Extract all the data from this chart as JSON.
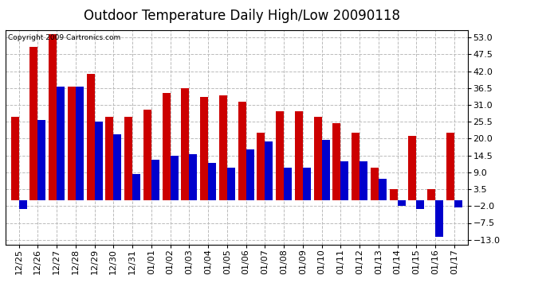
{
  "title": "Outdoor Temperature Daily High/Low 20090118",
  "copyright": "Copyright 2009 Cartronics.com",
  "dates": [
    "12/25",
    "12/26",
    "12/27",
    "12/28",
    "12/29",
    "12/30",
    "12/31",
    "01/01",
    "01/02",
    "01/03",
    "01/04",
    "01/05",
    "01/06",
    "01/07",
    "01/08",
    "01/09",
    "01/10",
    "01/11",
    "01/12",
    "01/13",
    "01/14",
    "01/15",
    "01/16",
    "01/17"
  ],
  "highs": [
    27.0,
    50.0,
    54.0,
    37.0,
    41.0,
    27.0,
    27.0,
    29.5,
    35.0,
    36.5,
    33.5,
    34.0,
    32.0,
    22.0,
    29.0,
    29.0,
    27.0,
    25.0,
    22.0,
    10.5,
    3.5,
    21.0,
    3.5,
    22.0
  ],
  "lows": [
    -3.0,
    26.0,
    37.0,
    37.0,
    25.5,
    21.5,
    8.5,
    13.0,
    14.5,
    15.0,
    12.0,
    10.5,
    16.5,
    19.0,
    10.5,
    10.5,
    19.5,
    12.5,
    12.5,
    7.0,
    -2.0,
    -3.0,
    -12.0,
    -2.5
  ],
  "high_color": "#cc0000",
  "low_color": "#0000cc",
  "bg_color": "#ffffff",
  "plot_bg_color": "#ffffff",
  "grid_color": "#bbbbbb",
  "ymin": -14.5,
  "ymax": 55.5,
  "yticks": [
    -13.0,
    -7.5,
    -2.0,
    3.5,
    9.0,
    14.5,
    20.0,
    25.5,
    31.0,
    36.5,
    42.0,
    47.5,
    53.0
  ],
  "title_fontsize": 12,
  "tick_fontsize": 8,
  "bar_width": 0.42
}
